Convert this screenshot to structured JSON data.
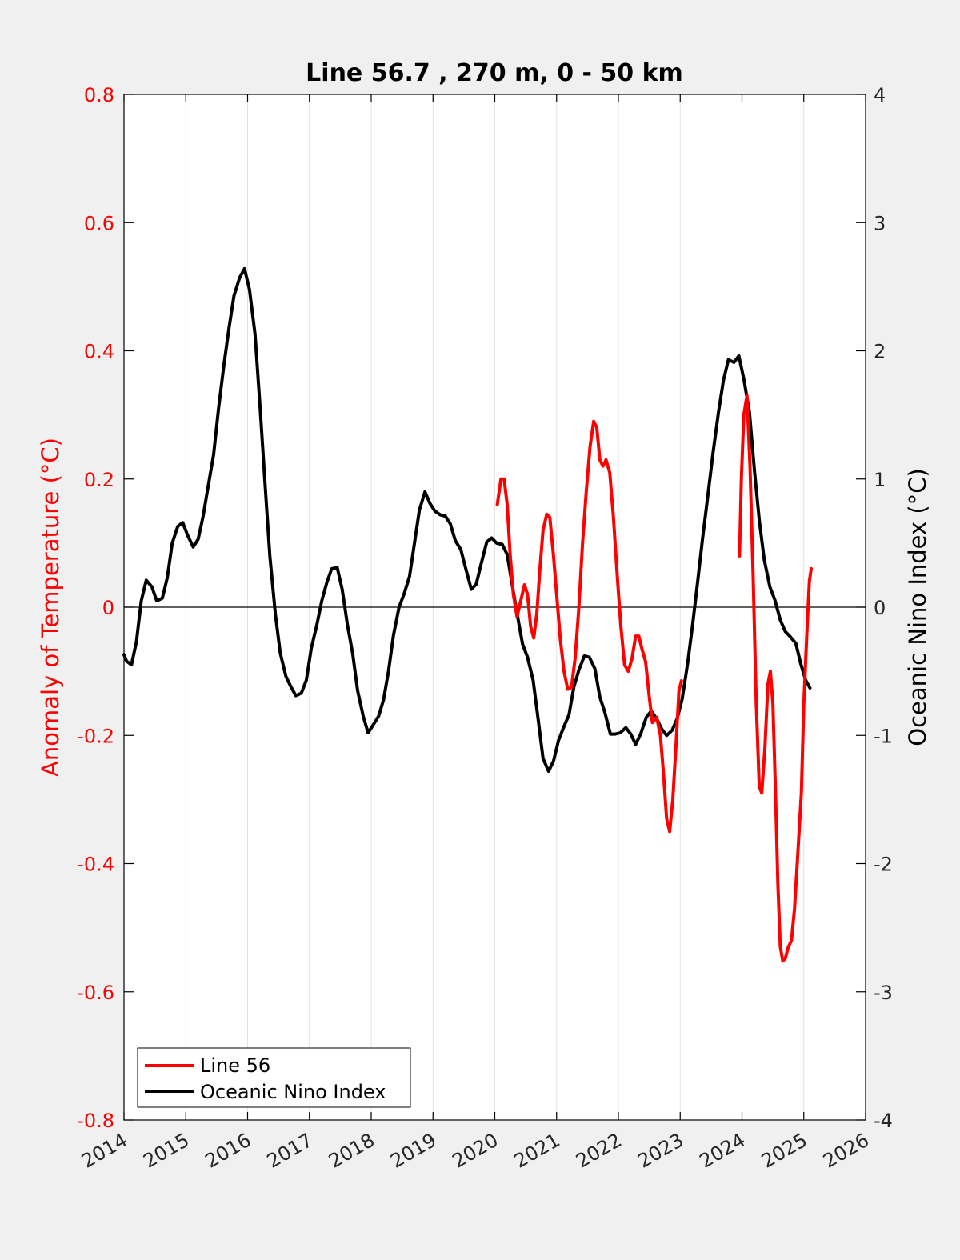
{
  "chart_data": {
    "type": "line",
    "title": "Line 56.7 , 270 m, 0 - 50 km",
    "xlabel": "",
    "ylabel": "Anomaly of Temperature (°C)",
    "y2label": "Oceanic Nino Index (°C)",
    "xlim": [
      2014,
      2026
    ],
    "ylim": [
      -0.8,
      0.8
    ],
    "y2lim": [
      -4,
      4
    ],
    "x_ticks": [
      2014,
      2015,
      2016,
      2017,
      2018,
      2019,
      2020,
      2021,
      2022,
      2023,
      2024,
      2025,
      2026
    ],
    "y_ticks": [
      -0.8,
      -0.6,
      -0.4,
      -0.2,
      0,
      0.2,
      0.4,
      0.6,
      0.8
    ],
    "y_tick_labels": [
      "-0.8",
      "-0.6",
      "-0.4",
      "-0.2",
      "0",
      "0.2",
      "0.4",
      "0.6",
      "0.8"
    ],
    "y2_ticks": [
      -4,
      -3,
      -2,
      -1,
      0,
      1,
      2,
      3,
      4
    ],
    "y2_tick_labels": [
      "-4",
      "-3",
      "-2",
      "-1",
      "0",
      "1",
      "2",
      "3",
      "4"
    ],
    "grid": "vertical",
    "zero_line": true,
    "legend_position": "bottom-left",
    "colors": {
      "left_axis": "#ff0000",
      "right_axis": "#000000",
      "grid": "#e3e3e3",
      "background": "#f0f0f0",
      "plot": "#ffffff"
    },
    "series": [
      {
        "name": "Line 56",
        "axis": "left",
        "color": "#ff0000",
        "segments": [
          [
            [
              2020.04,
              0.16
            ],
            [
              2020.1,
              0.2
            ],
            [
              2020.15,
              0.2
            ],
            [
              2020.2,
              0.16
            ],
            [
              2020.25,
              0.08
            ],
            [
              2020.3,
              0.02
            ],
            [
              2020.36,
              -0.015
            ],
            [
              2020.42,
              0.01
            ],
            [
              2020.48,
              0.035
            ],
            [
              2020.53,
              0.02
            ],
            [
              2020.58,
              -0.03
            ],
            [
              2020.63,
              -0.048
            ],
            [
              2020.68,
              -0.01
            ],
            [
              2020.73,
              0.06
            ],
            [
              2020.78,
              0.12
            ],
            [
              2020.84,
              0.145
            ],
            [
              2020.89,
              0.14
            ],
            [
              2020.95,
              0.08
            ],
            [
              2021.0,
              0.02
            ],
            [
              2021.06,
              -0.05
            ],
            [
              2021.12,
              -0.1
            ],
            [
              2021.18,
              -0.128
            ],
            [
              2021.24,
              -0.125
            ],
            [
              2021.3,
              -0.08
            ],
            [
              2021.36,
              0.0
            ],
            [
              2021.42,
              0.1
            ],
            [
              2021.48,
              0.18
            ],
            [
              2021.54,
              0.25
            ],
            [
              2021.6,
              0.29
            ],
            [
              2021.65,
              0.28
            ],
            [
              2021.7,
              0.23
            ],
            [
              2021.75,
              0.22
            ],
            [
              2021.8,
              0.23
            ],
            [
              2021.86,
              0.21
            ],
            [
              2021.92,
              0.14
            ],
            [
              2021.98,
              0.05
            ],
            [
              2022.04,
              -0.03
            ],
            [
              2022.1,
              -0.09
            ],
            [
              2022.16,
              -0.1
            ],
            [
              2022.22,
              -0.08
            ],
            [
              2022.28,
              -0.045
            ],
            [
              2022.33,
              -0.045
            ],
            [
              2022.38,
              -0.065
            ],
            [
              2022.44,
              -0.085
            ],
            [
              2022.5,
              -0.14
            ],
            [
              2022.55,
              -0.18
            ],
            [
              2022.62,
              -0.172
            ],
            [
              2022.68,
              -0.2
            ],
            [
              2022.73,
              -0.26
            ],
            [
              2022.78,
              -0.33
            ],
            [
              2022.83,
              -0.35
            ],
            [
              2022.88,
              -0.3
            ],
            [
              2022.93,
              -0.22
            ],
            [
              2022.98,
              -0.13
            ],
            [
              2023.02,
              -0.115
            ]
          ],
          [
            [
              2023.96,
              0.08
            ],
            [
              2023.99,
              0.2
            ],
            [
              2024.03,
              0.3
            ],
            [
              2024.08,
              0.33
            ],
            [
              2024.13,
              0.22
            ],
            [
              2024.18,
              0.05
            ],
            [
              2024.23,
              -0.15
            ],
            [
              2024.28,
              -0.28
            ],
            [
              2024.32,
              -0.29
            ],
            [
              2024.37,
              -0.22
            ],
            [
              2024.42,
              -0.12
            ],
            [
              2024.46,
              -0.1
            ],
            [
              2024.5,
              -0.15
            ],
            [
              2024.54,
              -0.28
            ],
            [
              2024.58,
              -0.43
            ],
            [
              2024.62,
              -0.53
            ],
            [
              2024.66,
              -0.552
            ],
            [
              2024.7,
              -0.548
            ],
            [
              2024.75,
              -0.53
            ],
            [
              2024.8,
              -0.52
            ],
            [
              2024.85,
              -0.47
            ],
            [
              2024.9,
              -0.39
            ],
            [
              2024.96,
              -0.29
            ],
            [
              2025.0,
              -0.15
            ],
            [
              2025.05,
              -0.04
            ],
            [
              2025.09,
              0.04
            ],
            [
              2025.12,
              0.06
            ]
          ]
        ]
      },
      {
        "name": "Oceanic Nino Index",
        "axis": "right",
        "color": "#000000",
        "segments": [
          [
            [
              2014.0,
              -0.37
            ],
            [
              2014.04,
              -0.42
            ],
            [
              2014.12,
              -0.45
            ],
            [
              2014.2,
              -0.27
            ],
            [
              2014.28,
              0.05
            ],
            [
              2014.36,
              0.21
            ],
            [
              2014.45,
              0.16
            ],
            [
              2014.53,
              0.05
            ],
            [
              2014.62,
              0.07
            ],
            [
              2014.7,
              0.23
            ],
            [
              2014.78,
              0.5
            ],
            [
              2014.87,
              0.63
            ],
            [
              2014.95,
              0.66
            ],
            [
              2015.03,
              0.56
            ],
            [
              2015.12,
              0.47
            ],
            [
              2015.2,
              0.53
            ],
            [
              2015.28,
              0.71
            ],
            [
              2015.36,
              0.94
            ],
            [
              2015.45,
              1.19
            ],
            [
              2015.53,
              1.55
            ],
            [
              2015.62,
              1.9
            ],
            [
              2015.7,
              2.18
            ],
            [
              2015.78,
              2.43
            ],
            [
              2015.87,
              2.57
            ],
            [
              2015.95,
              2.64
            ],
            [
              2016.03,
              2.48
            ],
            [
              2016.12,
              2.13
            ],
            [
              2016.2,
              1.57
            ],
            [
              2016.28,
              0.98
            ],
            [
              2016.36,
              0.4
            ],
            [
              2016.45,
              -0.06
            ],
            [
              2016.53,
              -0.36
            ],
            [
              2016.62,
              -0.54
            ],
            [
              2016.7,
              -0.62
            ],
            [
              2016.78,
              -0.69
            ],
            [
              2016.87,
              -0.67
            ],
            [
              2016.95,
              -0.57
            ],
            [
              2017.03,
              -0.32
            ],
            [
              2017.12,
              -0.14
            ],
            [
              2017.2,
              0.05
            ],
            [
              2017.28,
              0.19
            ],
            [
              2017.36,
              0.3
            ],
            [
              2017.45,
              0.31
            ],
            [
              2017.53,
              0.14
            ],
            [
              2017.62,
              -0.15
            ],
            [
              2017.7,
              -0.36
            ],
            [
              2017.78,
              -0.65
            ],
            [
              2017.87,
              -0.85
            ],
            [
              2017.95,
              -0.98
            ],
            [
              2018.03,
              -0.92
            ],
            [
              2018.12,
              -0.85
            ],
            [
              2018.2,
              -0.72
            ],
            [
              2018.28,
              -0.5
            ],
            [
              2018.36,
              -0.22
            ],
            [
              2018.45,
              0.0
            ],
            [
              2018.53,
              0.1
            ],
            [
              2018.62,
              0.24
            ],
            [
              2018.7,
              0.5
            ],
            [
              2018.78,
              0.76
            ],
            [
              2018.87,
              0.9
            ],
            [
              2018.95,
              0.81
            ],
            [
              2019.03,
              0.75
            ],
            [
              2019.12,
              0.72
            ],
            [
              2019.2,
              0.71
            ],
            [
              2019.28,
              0.65
            ],
            [
              2019.36,
              0.52
            ],
            [
              2019.45,
              0.45
            ],
            [
              2019.53,
              0.3
            ],
            [
              2019.62,
              0.14
            ],
            [
              2019.7,
              0.18
            ],
            [
              2019.78,
              0.34
            ],
            [
              2019.87,
              0.51
            ],
            [
              2019.95,
              0.54
            ],
            [
              2020.03,
              0.5
            ],
            [
              2020.12,
              0.49
            ],
            [
              2020.2,
              0.41
            ],
            [
              2020.28,
              0.18
            ],
            [
              2020.36,
              -0.05
            ],
            [
              2020.45,
              -0.29
            ],
            [
              2020.53,
              -0.39
            ],
            [
              2020.62,
              -0.57
            ],
            [
              2020.7,
              -0.87
            ],
            [
              2020.78,
              -1.18
            ],
            [
              2020.87,
              -1.28
            ],
            [
              2020.95,
              -1.2
            ],
            [
              2021.03,
              -1.04
            ],
            [
              2021.12,
              -0.93
            ],
            [
              2021.2,
              -0.84
            ],
            [
              2021.28,
              -0.62
            ],
            [
              2021.36,
              -0.49
            ],
            [
              2021.45,
              -0.38
            ],
            [
              2021.53,
              -0.39
            ],
            [
              2021.62,
              -0.48
            ],
            [
              2021.7,
              -0.7
            ],
            [
              2021.78,
              -0.82
            ],
            [
              2021.87,
              -0.99
            ],
            [
              2021.95,
              -0.99
            ],
            [
              2022.03,
              -0.98
            ],
            [
              2022.12,
              -0.94
            ],
            [
              2022.2,
              -0.99
            ],
            [
              2022.28,
              -1.07
            ],
            [
              2022.36,
              -0.99
            ],
            [
              2022.45,
              -0.86
            ],
            [
              2022.53,
              -0.81
            ],
            [
              2022.62,
              -0.87
            ],
            [
              2022.7,
              -0.95
            ],
            [
              2022.78,
              -1.0
            ],
            [
              2022.87,
              -0.96
            ],
            [
              2022.95,
              -0.87
            ],
            [
              2023.03,
              -0.72
            ],
            [
              2023.12,
              -0.44
            ],
            [
              2023.2,
              -0.14
            ],
            [
              2023.28,
              0.19
            ],
            [
              2023.36,
              0.53
            ],
            [
              2023.45,
              0.88
            ],
            [
              2023.53,
              1.2
            ],
            [
              2023.62,
              1.52
            ],
            [
              2023.7,
              1.77
            ],
            [
              2023.78,
              1.93
            ],
            [
              2023.87,
              1.91
            ],
            [
              2023.95,
              1.96
            ],
            [
              2024.03,
              1.78
            ],
            [
              2024.12,
              1.52
            ],
            [
              2024.2,
              1.07
            ],
            [
              2024.28,
              0.68
            ],
            [
              2024.36,
              0.37
            ],
            [
              2024.45,
              0.16
            ],
            [
              2024.53,
              0.06
            ],
            [
              2024.62,
              -0.1
            ],
            [
              2024.7,
              -0.19
            ],
            [
              2024.78,
              -0.23
            ],
            [
              2024.87,
              -0.28
            ],
            [
              2024.95,
              -0.44
            ],
            [
              2025.03,
              -0.57
            ],
            [
              2025.1,
              -0.63
            ]
          ]
        ]
      }
    ]
  }
}
